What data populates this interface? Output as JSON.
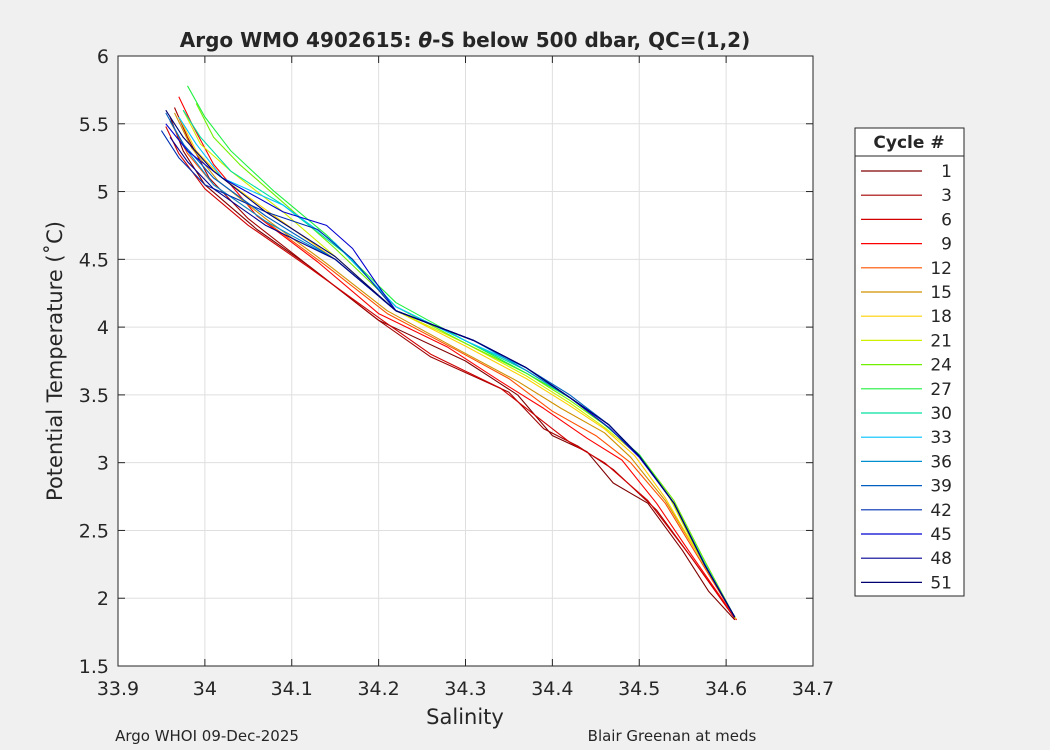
{
  "chart_data": {
    "type": "line",
    "title_prefix": "Argo WMO 4902615: ",
    "title_theta": "θ",
    "title_suffix": "-S below 500 dbar,  QC=(1,2)",
    "xlabel": "Salinity",
    "ylabel": "Potential Temperature (˚C)",
    "xlim": [
      33.9,
      34.7
    ],
    "ylim": [
      1.5,
      6
    ],
    "xticks": [
      33.9,
      34.0,
      34.1,
      34.2,
      34.3,
      34.4,
      34.5,
      34.6,
      34.7
    ],
    "xtick_labels": [
      "33.9",
      "34",
      "34.1",
      "34.2",
      "34.3",
      "34.4",
      "34.5",
      "34.6",
      "34.7"
    ],
    "yticks": [
      1.5,
      2,
      2.5,
      3,
      3.5,
      4,
      4.5,
      5,
      5.5,
      6
    ],
    "ytick_labels": [
      "1.5",
      "2",
      "2.5",
      "3",
      "3.5",
      "4",
      "4.5",
      "5",
      "5.5",
      "6"
    ],
    "grid": true,
    "legend_title": "Cycle #",
    "legend_position": "right",
    "legend_entries": [
      {
        "label": "1",
        "color": "#800000"
      },
      {
        "label": "3",
        "color": "#a00000"
      },
      {
        "label": "6",
        "color": "#d00000"
      },
      {
        "label": "9",
        "color": "#ff0000"
      },
      {
        "label": "12",
        "color": "#ff5000"
      },
      {
        "label": "15",
        "color": "#d09000"
      },
      {
        "label": "18",
        "color": "#ffd000"
      },
      {
        "label": "21",
        "color": "#d0f000"
      },
      {
        "label": "24",
        "color": "#70f000"
      },
      {
        "label": "27",
        "color": "#20f040"
      },
      {
        "label": "30",
        "color": "#00e0a0"
      },
      {
        "label": "33",
        "color": "#00c0ff"
      },
      {
        "label": "36",
        "color": "#0090d0"
      },
      {
        "label": "39",
        "color": "#0060c0"
      },
      {
        "label": "42",
        "color": "#0030b0"
      },
      {
        "label": "45",
        "color": "#0000d0"
      },
      {
        "label": "48",
        "color": "#000090"
      },
      {
        "label": "51",
        "color": "#000070"
      }
    ],
    "series": [
      {
        "name": "Cycle 1",
        "color": "#800000",
        "points": [
          [
            33.96,
            5.55
          ],
          [
            33.975,
            5.3
          ],
          [
            34.0,
            5.05
          ],
          [
            34.06,
            4.72
          ],
          [
            34.12,
            4.45
          ],
          [
            34.2,
            4.05
          ],
          [
            34.3,
            3.75
          ],
          [
            34.36,
            3.5
          ],
          [
            34.4,
            3.2
          ],
          [
            34.44,
            3.08
          ],
          [
            34.47,
            2.85
          ],
          [
            34.51,
            2.7
          ],
          [
            34.55,
            2.35
          ],
          [
            34.58,
            2.05
          ],
          [
            34.61,
            1.84
          ]
        ]
      },
      {
        "name": "Cycle 3",
        "color": "#a00000",
        "points": [
          [
            33.965,
            5.62
          ],
          [
            33.98,
            5.4
          ],
          [
            34.005,
            5.1
          ],
          [
            34.05,
            4.8
          ],
          [
            34.11,
            4.5
          ],
          [
            34.2,
            4.05
          ],
          [
            34.26,
            3.78
          ],
          [
            34.35,
            3.52
          ],
          [
            34.39,
            3.25
          ],
          [
            34.43,
            3.12
          ],
          [
            34.47,
            2.95
          ],
          [
            34.52,
            2.65
          ],
          [
            34.56,
            2.3
          ],
          [
            34.612,
            1.84
          ]
        ]
      },
      {
        "name": "Cycle 6",
        "color": "#d00000",
        "points": [
          [
            33.955,
            5.48
          ],
          [
            33.97,
            5.28
          ],
          [
            34.0,
            5.02
          ],
          [
            34.05,
            4.75
          ],
          [
            34.12,
            4.44
          ],
          [
            34.2,
            4.07
          ],
          [
            34.26,
            3.8
          ],
          [
            34.34,
            3.55
          ],
          [
            34.38,
            3.35
          ],
          [
            34.42,
            3.15
          ],
          [
            34.46,
            3.0
          ],
          [
            34.51,
            2.72
          ],
          [
            34.56,
            2.3
          ],
          [
            34.61,
            1.85
          ]
        ]
      },
      {
        "name": "Cycle 9",
        "color": "#ff0000",
        "points": [
          [
            33.97,
            5.7
          ],
          [
            33.985,
            5.5
          ],
          [
            34.01,
            5.2
          ],
          [
            34.06,
            4.82
          ],
          [
            34.13,
            4.48
          ],
          [
            34.2,
            4.1
          ],
          [
            34.28,
            3.85
          ],
          [
            34.34,
            3.6
          ],
          [
            34.39,
            3.4
          ],
          [
            34.44,
            3.18
          ],
          [
            34.48,
            3.02
          ],
          [
            34.52,
            2.7
          ],
          [
            34.56,
            2.32
          ],
          [
            34.612,
            1.84
          ]
        ]
      },
      {
        "name": "Cycle 12",
        "color": "#ff5000",
        "points": [
          [
            33.96,
            5.52
          ],
          [
            33.98,
            5.28
          ],
          [
            34.01,
            5.05
          ],
          [
            34.07,
            4.78
          ],
          [
            34.14,
            4.45
          ],
          [
            34.21,
            4.1
          ],
          [
            34.29,
            3.83
          ],
          [
            34.35,
            3.62
          ],
          [
            34.4,
            3.38
          ],
          [
            34.45,
            3.2
          ],
          [
            34.49,
            3.0
          ],
          [
            34.53,
            2.7
          ],
          [
            34.57,
            2.28
          ],
          [
            34.611,
            1.85
          ]
        ]
      },
      {
        "name": "Cycle 15",
        "color": "#d09000",
        "points": [
          [
            33.965,
            5.58
          ],
          [
            33.985,
            5.32
          ],
          [
            34.015,
            5.08
          ],
          [
            34.07,
            4.8
          ],
          [
            34.14,
            4.47
          ],
          [
            34.21,
            4.12
          ],
          [
            34.29,
            3.84
          ],
          [
            34.36,
            3.6
          ],
          [
            34.41,
            3.4
          ],
          [
            34.46,
            3.22
          ],
          [
            34.49,
            3.04
          ],
          [
            34.53,
            2.72
          ],
          [
            34.57,
            2.3
          ],
          [
            34.611,
            1.85
          ]
        ]
      },
      {
        "name": "Cycle 18",
        "color": "#ffd000",
        "points": [
          [
            33.97,
            5.55
          ],
          [
            33.99,
            5.3
          ],
          [
            34.02,
            5.1
          ],
          [
            34.08,
            4.82
          ],
          [
            34.15,
            4.5
          ],
          [
            34.22,
            4.12
          ],
          [
            34.3,
            3.86
          ],
          [
            34.37,
            3.62
          ],
          [
            34.42,
            3.42
          ],
          [
            34.46,
            3.25
          ],
          [
            34.495,
            3.05
          ],
          [
            34.53,
            2.74
          ],
          [
            34.57,
            2.3
          ],
          [
            34.611,
            1.85
          ]
        ]
      },
      {
        "name": "Cycle 21",
        "color": "#d0f000",
        "points": [
          [
            33.975,
            5.6
          ],
          [
            33.995,
            5.35
          ],
          [
            34.03,
            5.15
          ],
          [
            34.09,
            4.85
          ],
          [
            34.15,
            4.52
          ],
          [
            34.22,
            4.12
          ],
          [
            34.3,
            3.88
          ],
          [
            34.37,
            3.64
          ],
          [
            34.42,
            3.44
          ],
          [
            34.46,
            3.26
          ],
          [
            34.5,
            3.05
          ],
          [
            34.535,
            2.74
          ],
          [
            34.57,
            2.3
          ],
          [
            34.611,
            1.85
          ]
        ]
      },
      {
        "name": "Cycle 24",
        "color": "#70f000",
        "points": [
          [
            33.99,
            5.65
          ],
          [
            34.01,
            5.4
          ],
          [
            34.04,
            5.2
          ],
          [
            34.09,
            4.92
          ],
          [
            34.15,
            4.58
          ],
          [
            34.22,
            4.15
          ],
          [
            34.3,
            3.88
          ],
          [
            34.37,
            3.66
          ],
          [
            34.42,
            3.46
          ],
          [
            34.46,
            3.28
          ],
          [
            34.5,
            3.06
          ],
          [
            34.54,
            2.72
          ],
          [
            34.575,
            2.28
          ],
          [
            34.61,
            1.86
          ]
        ]
      },
      {
        "name": "Cycle 27",
        "color": "#20f040",
        "points": [
          [
            33.98,
            5.78
          ],
          [
            34.0,
            5.55
          ],
          [
            34.03,
            5.3
          ],
          [
            34.08,
            5.0
          ],
          [
            34.14,
            4.68
          ],
          [
            34.22,
            4.18
          ],
          [
            34.3,
            3.9
          ],
          [
            34.37,
            3.66
          ],
          [
            34.42,
            3.48
          ],
          [
            34.46,
            3.28
          ],
          [
            34.5,
            3.06
          ],
          [
            34.54,
            2.7
          ],
          [
            34.575,
            2.26
          ],
          [
            34.61,
            1.86
          ]
        ]
      },
      {
        "name": "Cycle 30",
        "color": "#00e0a0",
        "points": [
          [
            33.975,
            5.6
          ],
          [
            33.995,
            5.4
          ],
          [
            34.03,
            5.15
          ],
          [
            34.09,
            4.9
          ],
          [
            34.16,
            4.55
          ],
          [
            34.22,
            4.15
          ],
          [
            34.3,
            3.9
          ],
          [
            34.37,
            3.68
          ],
          [
            34.42,
            3.48
          ],
          [
            34.465,
            3.28
          ],
          [
            34.5,
            3.05
          ],
          [
            34.54,
            2.7
          ],
          [
            34.575,
            2.26
          ],
          [
            34.61,
            1.86
          ]
        ]
      },
      {
        "name": "Cycle 33",
        "color": "#00c0ff",
        "points": [
          [
            33.97,
            5.55
          ],
          [
            33.99,
            5.35
          ],
          [
            34.02,
            5.1
          ],
          [
            34.09,
            4.9
          ],
          [
            34.15,
            4.62
          ],
          [
            34.22,
            4.15
          ],
          [
            34.3,
            3.9
          ],
          [
            34.37,
            3.7
          ],
          [
            34.42,
            3.48
          ],
          [
            34.465,
            3.28
          ],
          [
            34.5,
            3.05
          ],
          [
            34.54,
            2.7
          ],
          [
            34.575,
            2.26
          ],
          [
            34.61,
            1.86
          ]
        ]
      },
      {
        "name": "Cycle 36",
        "color": "#0090d0",
        "points": [
          [
            33.96,
            5.52
          ],
          [
            33.98,
            5.3
          ],
          [
            34.01,
            5.05
          ],
          [
            34.07,
            4.78
          ],
          [
            34.15,
            4.5
          ],
          [
            34.22,
            4.12
          ],
          [
            34.31,
            3.9
          ],
          [
            34.37,
            3.68
          ],
          [
            34.42,
            3.48
          ],
          [
            34.465,
            3.28
          ],
          [
            34.5,
            3.05
          ],
          [
            34.54,
            2.7
          ],
          [
            34.575,
            2.25
          ],
          [
            34.61,
            1.86
          ]
        ]
      },
      {
        "name": "Cycle 39",
        "color": "#0060c0",
        "points": [
          [
            33.955,
            5.58
          ],
          [
            33.975,
            5.35
          ],
          [
            34.01,
            5.1
          ],
          [
            34.07,
            4.82
          ],
          [
            34.15,
            4.5
          ],
          [
            34.22,
            4.12
          ],
          [
            34.31,
            3.9
          ],
          [
            34.37,
            3.7
          ],
          [
            34.42,
            3.5
          ],
          [
            34.465,
            3.28
          ],
          [
            34.5,
            3.05
          ],
          [
            34.54,
            2.7
          ],
          [
            34.575,
            2.25
          ],
          [
            34.61,
            1.86
          ]
        ]
      },
      {
        "name": "Cycle 42",
        "color": "#0030b0",
        "points": [
          [
            33.95,
            5.45
          ],
          [
            33.97,
            5.25
          ],
          [
            34.0,
            5.05
          ],
          [
            34.07,
            4.85
          ],
          [
            34.13,
            4.72
          ],
          [
            34.17,
            4.5
          ],
          [
            34.22,
            4.12
          ],
          [
            34.31,
            3.9
          ],
          [
            34.37,
            3.7
          ],
          [
            34.42,
            3.48
          ],
          [
            34.465,
            3.28
          ],
          [
            34.5,
            3.05
          ],
          [
            34.54,
            2.7
          ],
          [
            34.575,
            2.25
          ],
          [
            34.61,
            1.86
          ]
        ]
      },
      {
        "name": "Cycle 45",
        "color": "#0000d0",
        "points": [
          [
            33.955,
            5.5
          ],
          [
            33.98,
            5.3
          ],
          [
            34.02,
            5.1
          ],
          [
            34.09,
            4.85
          ],
          [
            34.14,
            4.75
          ],
          [
            34.17,
            4.58
          ],
          [
            34.2,
            4.3
          ],
          [
            34.22,
            4.12
          ],
          [
            34.31,
            3.9
          ],
          [
            34.37,
            3.7
          ],
          [
            34.42,
            3.48
          ],
          [
            34.465,
            3.26
          ],
          [
            34.5,
            3.04
          ],
          [
            34.54,
            2.7
          ],
          [
            34.575,
            2.25
          ],
          [
            34.61,
            1.86
          ]
        ]
      },
      {
        "name": "Cycle 48",
        "color": "#000090",
        "points": [
          [
            33.96,
            5.4
          ],
          [
            33.98,
            5.22
          ],
          [
            34.01,
            5.02
          ],
          [
            34.07,
            4.75
          ],
          [
            34.15,
            4.5
          ],
          [
            34.22,
            4.12
          ],
          [
            34.31,
            3.9
          ],
          [
            34.37,
            3.7
          ],
          [
            34.42,
            3.48
          ],
          [
            34.465,
            3.28
          ],
          [
            34.5,
            3.05
          ],
          [
            34.54,
            2.7
          ],
          [
            34.575,
            2.25
          ],
          [
            34.61,
            1.86
          ]
        ]
      },
      {
        "name": "Cycle 51",
        "color": "#000070",
        "points": [
          [
            33.955,
            5.6
          ],
          [
            33.975,
            5.4
          ],
          [
            34.01,
            5.15
          ],
          [
            34.07,
            4.85
          ],
          [
            34.15,
            4.52
          ],
          [
            34.22,
            4.12
          ],
          [
            34.31,
            3.9
          ],
          [
            34.37,
            3.7
          ],
          [
            34.42,
            3.48
          ],
          [
            34.465,
            3.28
          ],
          [
            34.5,
            3.05
          ],
          [
            34.54,
            2.7
          ],
          [
            34.575,
            2.25
          ],
          [
            34.61,
            1.86
          ]
        ]
      }
    ]
  },
  "footer": {
    "left": "Argo WHOI 09-Dec-2025",
    "right": "Blair Greenan at meds"
  }
}
